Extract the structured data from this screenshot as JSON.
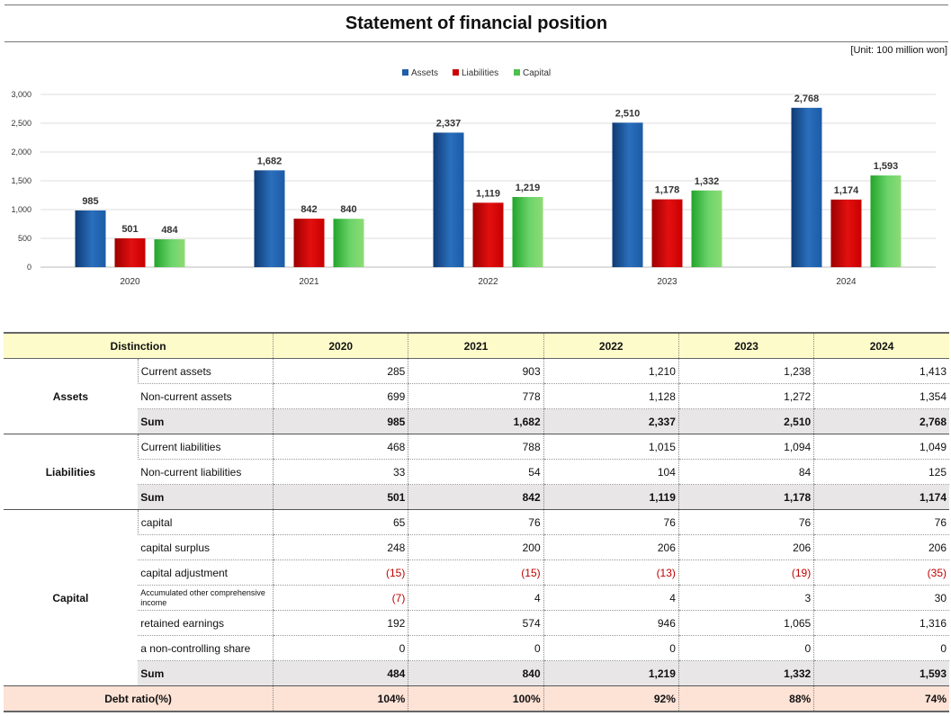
{
  "title": "Statement of financial position",
  "unit": "[Unit: 100 million won]",
  "colors": {
    "assets": "#1f5fa8",
    "liabilities": "#cc0000",
    "capital": "#4cc04c"
  },
  "chart_data": {
    "type": "bar",
    "categories": [
      "2020",
      "2021",
      "2022",
      "2023",
      "2024"
    ],
    "series": [
      {
        "name": "Assets",
        "values": [
          985,
          1682,
          2337,
          2510,
          2768
        ]
      },
      {
        "name": "Liabilities",
        "values": [
          501,
          842,
          1119,
          1178,
          1174
        ]
      },
      {
        "name": "Capital",
        "values": [
          484,
          840,
          1219,
          1332,
          1593
        ]
      }
    ],
    "data_labels": {
      "Assets": [
        "985",
        "1,682",
        "2,337",
        "2,510",
        "2,768"
      ],
      "Liabilities": [
        "501",
        "842",
        "1,119",
        "1,178",
        "1,174"
      ],
      "Capital": [
        "484",
        "840",
        "1,219",
        "1,332",
        "1,593"
      ]
    },
    "ylim": [
      0,
      3000
    ],
    "yticks": [
      "0",
      "500",
      "1,000",
      "1,500",
      "2,000",
      "2,500",
      "3,000"
    ],
    "ytick_values": [
      0,
      500,
      1000,
      1500,
      2000,
      2500,
      3000
    ],
    "grid": true,
    "legend_position": "top-center"
  },
  "table": {
    "header": {
      "distinction": "Distinction",
      "years": [
        "2020",
        "2021",
        "2022",
        "2023",
        "2024"
      ]
    },
    "assets": {
      "label": "Assets",
      "rows": [
        {
          "item": "Current assets",
          "values": [
            "285",
            "903",
            "1,210",
            "1,238",
            "1,413"
          ]
        },
        {
          "item": "Non-current assets",
          "values": [
            "699",
            "778",
            "1,128",
            "1,272",
            "1,354"
          ]
        }
      ],
      "sum": {
        "item": "Sum",
        "values": [
          "985",
          "1,682",
          "2,337",
          "2,510",
          "2,768"
        ]
      }
    },
    "liabilities": {
      "label": "Liabilities",
      "rows": [
        {
          "item": "Current liabilities",
          "values": [
            "468",
            "788",
            "1,015",
            "1,094",
            "1,049"
          ]
        },
        {
          "item": "Non-current liabilities",
          "values": [
            "33",
            "54",
            "104",
            "84",
            "125"
          ]
        }
      ],
      "sum": {
        "item": "Sum",
        "values": [
          "501",
          "842",
          "1,119",
          "1,178",
          "1,174"
        ]
      }
    },
    "capital": {
      "label": "Capital",
      "rows": [
        {
          "item": "capital",
          "values": [
            "65",
            "76",
            "76",
            "76",
            "76"
          ]
        },
        {
          "item": "capital surplus",
          "values": [
            "248",
            "200",
            "206",
            "206",
            "206"
          ]
        },
        {
          "item": "capital adjustment",
          "values": [
            "(15)",
            "(15)",
            "(13)",
            "(19)",
            "(35)"
          ]
        },
        {
          "item": "Accumulated other comprehensive income",
          "values": [
            "(7)",
            "4",
            "4",
            "3",
            "30"
          ]
        },
        {
          "item": "retained earnings",
          "values": [
            "192",
            "574",
            "946",
            "1,065",
            "1,316"
          ]
        },
        {
          "item": "a non-controlling share",
          "values": [
            "0",
            "0",
            "0",
            "0",
            "0"
          ]
        }
      ],
      "sum": {
        "item": "Sum",
        "values": [
          "484",
          "840",
          "1,219",
          "1,332",
          "1,593"
        ]
      }
    },
    "debt_ratio": {
      "label": "Debt ratio(%)",
      "values": [
        "104%",
        "100%",
        "92%",
        "88%",
        "74%"
      ]
    }
  }
}
